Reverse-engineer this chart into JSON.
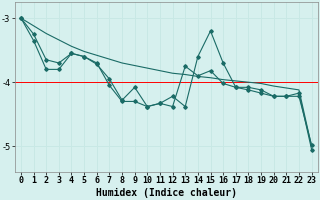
{
  "title": "",
  "xlabel": "Humidex (Indice chaleur)",
  "bg_color": "#d6f0ee",
  "grid_color": "#b8dbd8",
  "line_color": "#1a6b66",
  "x_values": [
    0,
    1,
    2,
    3,
    4,
    5,
    6,
    7,
    8,
    9,
    10,
    11,
    12,
    13,
    14,
    15,
    16,
    17,
    18,
    19,
    20,
    21,
    22,
    23
  ],
  "series1": [
    -3.0,
    -3.25,
    -3.65,
    -3.7,
    -3.55,
    -3.6,
    -3.7,
    -4.05,
    -4.3,
    -4.3,
    -4.38,
    -4.33,
    -4.38,
    -3.75,
    -3.9,
    -3.82,
    -4.02,
    -4.08,
    -4.12,
    -4.17,
    -4.22,
    -4.22,
    -4.17,
    -5.05
  ],
  "series2": [
    -3.0,
    -3.35,
    -3.8,
    -3.8,
    -3.55,
    -3.6,
    -3.72,
    -3.95,
    -4.28,
    -4.08,
    -4.38,
    -4.33,
    -4.22,
    -4.38,
    -3.6,
    -3.2,
    -3.7,
    -4.08,
    -4.08,
    -4.12,
    -4.22,
    -4.22,
    -4.22,
    -4.98
  ],
  "trend": [
    -3.0,
    -3.12,
    -3.24,
    -3.34,
    -3.44,
    -3.52,
    -3.58,
    -3.64,
    -3.7,
    -3.74,
    -3.78,
    -3.82,
    -3.86,
    -3.88,
    -3.91,
    -3.93,
    -3.96,
    -3.98,
    -4.0,
    -4.02,
    -4.06,
    -4.09,
    -4.12,
    -5.0
  ],
  "ylim": [
    -5.4,
    -2.75
  ],
  "yticks": [
    -5,
    -4,
    -3
  ],
  "xlim": [
    -0.5,
    23.5
  ],
  "redline_y": -4.0,
  "title_fontsize": 7,
  "axis_fontsize": 7,
  "tick_fontsize": 6
}
